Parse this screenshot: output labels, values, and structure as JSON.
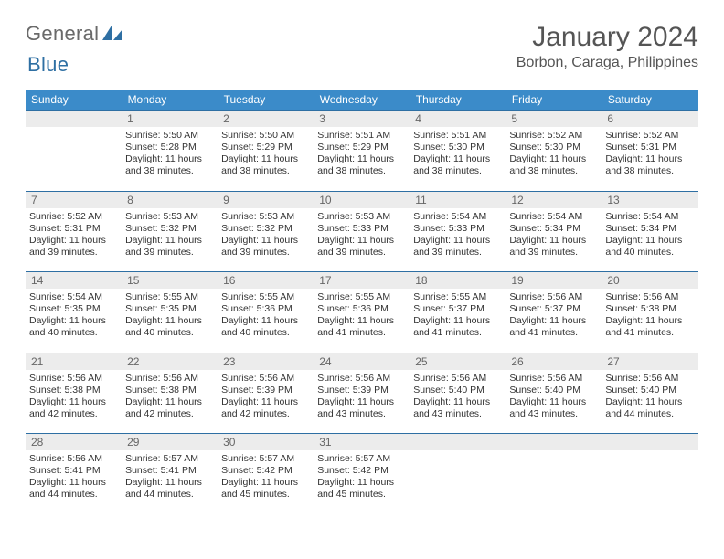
{
  "logo": {
    "text1": "General",
    "text2": "Blue"
  },
  "title": "January 2024",
  "location": "Borbon, Caraga, Philippines",
  "colors": {
    "header_bg": "#3b8bc9",
    "header_text": "#ffffff",
    "rule": "#2e6fa3",
    "daynum_bg": "#ececec",
    "daynum_text": "#666666",
    "body_text": "#333333",
    "logo_gray": "#6a6a6a",
    "logo_blue": "#2e6fa3"
  },
  "weekdays": [
    "Sunday",
    "Monday",
    "Tuesday",
    "Wednesday",
    "Thursday",
    "Friday",
    "Saturday"
  ],
  "weeks": [
    [
      null,
      {
        "n": "1",
        "sr": "5:50 AM",
        "ss": "5:28 PM",
        "dl": "11 hours and 38 minutes."
      },
      {
        "n": "2",
        "sr": "5:50 AM",
        "ss": "5:29 PM",
        "dl": "11 hours and 38 minutes."
      },
      {
        "n": "3",
        "sr": "5:51 AM",
        "ss": "5:29 PM",
        "dl": "11 hours and 38 minutes."
      },
      {
        "n": "4",
        "sr": "5:51 AM",
        "ss": "5:30 PM",
        "dl": "11 hours and 38 minutes."
      },
      {
        "n": "5",
        "sr": "5:52 AM",
        "ss": "5:30 PM",
        "dl": "11 hours and 38 minutes."
      },
      {
        "n": "6",
        "sr": "5:52 AM",
        "ss": "5:31 PM",
        "dl": "11 hours and 38 minutes."
      }
    ],
    [
      {
        "n": "7",
        "sr": "5:52 AM",
        "ss": "5:31 PM",
        "dl": "11 hours and 39 minutes."
      },
      {
        "n": "8",
        "sr": "5:53 AM",
        "ss": "5:32 PM",
        "dl": "11 hours and 39 minutes."
      },
      {
        "n": "9",
        "sr": "5:53 AM",
        "ss": "5:32 PM",
        "dl": "11 hours and 39 minutes."
      },
      {
        "n": "10",
        "sr": "5:53 AM",
        "ss": "5:33 PM",
        "dl": "11 hours and 39 minutes."
      },
      {
        "n": "11",
        "sr": "5:54 AM",
        "ss": "5:33 PM",
        "dl": "11 hours and 39 minutes."
      },
      {
        "n": "12",
        "sr": "5:54 AM",
        "ss": "5:34 PM",
        "dl": "11 hours and 39 minutes."
      },
      {
        "n": "13",
        "sr": "5:54 AM",
        "ss": "5:34 PM",
        "dl": "11 hours and 40 minutes."
      }
    ],
    [
      {
        "n": "14",
        "sr": "5:54 AM",
        "ss": "5:35 PM",
        "dl": "11 hours and 40 minutes."
      },
      {
        "n": "15",
        "sr": "5:55 AM",
        "ss": "5:35 PM",
        "dl": "11 hours and 40 minutes."
      },
      {
        "n": "16",
        "sr": "5:55 AM",
        "ss": "5:36 PM",
        "dl": "11 hours and 40 minutes."
      },
      {
        "n": "17",
        "sr": "5:55 AM",
        "ss": "5:36 PM",
        "dl": "11 hours and 41 minutes."
      },
      {
        "n": "18",
        "sr": "5:55 AM",
        "ss": "5:37 PM",
        "dl": "11 hours and 41 minutes."
      },
      {
        "n": "19",
        "sr": "5:56 AM",
        "ss": "5:37 PM",
        "dl": "11 hours and 41 minutes."
      },
      {
        "n": "20",
        "sr": "5:56 AM",
        "ss": "5:38 PM",
        "dl": "11 hours and 41 minutes."
      }
    ],
    [
      {
        "n": "21",
        "sr": "5:56 AM",
        "ss": "5:38 PM",
        "dl": "11 hours and 42 minutes."
      },
      {
        "n": "22",
        "sr": "5:56 AM",
        "ss": "5:38 PM",
        "dl": "11 hours and 42 minutes."
      },
      {
        "n": "23",
        "sr": "5:56 AM",
        "ss": "5:39 PM",
        "dl": "11 hours and 42 minutes."
      },
      {
        "n": "24",
        "sr": "5:56 AM",
        "ss": "5:39 PM",
        "dl": "11 hours and 43 minutes."
      },
      {
        "n": "25",
        "sr": "5:56 AM",
        "ss": "5:40 PM",
        "dl": "11 hours and 43 minutes."
      },
      {
        "n": "26",
        "sr": "5:56 AM",
        "ss": "5:40 PM",
        "dl": "11 hours and 43 minutes."
      },
      {
        "n": "27",
        "sr": "5:56 AM",
        "ss": "5:40 PM",
        "dl": "11 hours and 44 minutes."
      }
    ],
    [
      {
        "n": "28",
        "sr": "5:56 AM",
        "ss": "5:41 PM",
        "dl": "11 hours and 44 minutes."
      },
      {
        "n": "29",
        "sr": "5:57 AM",
        "ss": "5:41 PM",
        "dl": "11 hours and 44 minutes."
      },
      {
        "n": "30",
        "sr": "5:57 AM",
        "ss": "5:42 PM",
        "dl": "11 hours and 45 minutes."
      },
      {
        "n": "31",
        "sr": "5:57 AM",
        "ss": "5:42 PM",
        "dl": "11 hours and 45 minutes."
      },
      null,
      null,
      null
    ]
  ],
  "labels": {
    "sunrise": "Sunrise:",
    "sunset": "Sunset:",
    "daylight": "Daylight:"
  }
}
